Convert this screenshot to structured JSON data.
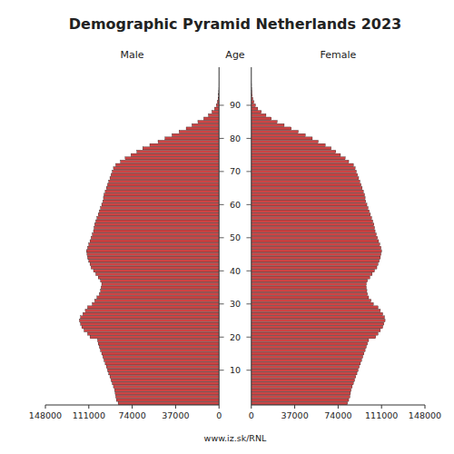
{
  "chart_data": {
    "type": "bar",
    "orientation": "horizontal",
    "title": "Demographic Pyramid Netherlands 2023",
    "ylabel": "Age",
    "annotations": [
      "www.iz.sk/RNL"
    ],
    "categories": [
      null,
      null,
      null,
      null,
      null,
      null,
      null,
      null,
      null,
      null,
      "10",
      null,
      null,
      null,
      null,
      null,
      null,
      null,
      null,
      null,
      "20",
      null,
      null,
      null,
      null,
      null,
      null,
      null,
      null,
      null,
      "30",
      null,
      null,
      null,
      null,
      null,
      null,
      null,
      null,
      null,
      "40",
      null,
      null,
      null,
      null,
      null,
      null,
      null,
      null,
      null,
      "50",
      null,
      null,
      null,
      null,
      null,
      null,
      null,
      null,
      null,
      "60",
      null,
      null,
      null,
      null,
      null,
      null,
      null,
      null,
      null,
      "70",
      null,
      null,
      null,
      null,
      null,
      null,
      null,
      null,
      null,
      "80",
      null,
      null,
      null,
      null,
      null,
      null,
      null,
      null,
      null,
      "90",
      null,
      null,
      null,
      null,
      null,
      null,
      null,
      null,
      null,
      null,
      null
    ],
    "xlim": [
      0,
      148000
    ],
    "xticks": [
      0,
      37000,
      74000,
      111000,
      148000
    ],
    "grid": false,
    "series": [
      {
        "name": "Male",
        "color": "#cd4444",
        "values": [
          86000,
          87500,
          88000,
          88500,
          89000,
          90000,
          91000,
          92000,
          93000,
          94000,
          95000,
          96000,
          97000,
          98000,
          99000,
          100000,
          101000,
          102000,
          103000,
          103500,
          110000,
          112000,
          115000,
          117000,
          118000,
          119000,
          118000,
          116000,
          114000,
          112000,
          108000,
          106000,
          104000,
          102000,
          101000,
          100500,
          100000,
          101000,
          103000,
          105000,
          107000,
          109000,
          110000,
          111000,
          112000,
          112500,
          113000,
          112000,
          111000,
          110000,
          109000,
          108000,
          107000,
          106500,
          106000,
          105000,
          104000,
          103000,
          102000,
          101000,
          100000,
          99000,
          98500,
          98000,
          97000,
          96000,
          95000,
          94000,
          93000,
          92000,
          91000,
          90000,
          88000,
          84000,
          80000,
          75000,
          70000,
          65000,
          59000,
          52000,
          46000,
          40000,
          34000,
          28000,
          23000,
          18000,
          13000,
          9000,
          6000,
          3800,
          2300,
          1400,
          800,
          450,
          240,
          130,
          65,
          30,
          15,
          7,
          3,
          1
        ]
      },
      {
        "name": "Female",
        "color": "#cd4444",
        "values": [
          82000,
          83000,
          84000,
          84500,
          85000,
          86000,
          87000,
          88000,
          89000,
          90000,
          91000,
          92000,
          93000,
          94000,
          95000,
          96000,
          97000,
          98000,
          99000,
          100000,
          106000,
          108000,
          110000,
          112000,
          113000,
          114000,
          113500,
          112000,
          110000,
          108000,
          104000,
          102000,
          100000,
          99000,
          98500,
          98000,
          98000,
          99000,
          101000,
          103000,
          105000,
          107000,
          108000,
          109000,
          110000,
          110500,
          111000,
          110500,
          109500,
          108500,
          107500,
          106500,
          105500,
          105000,
          104500,
          103500,
          102500,
          101500,
          100500,
          99500,
          98500,
          97500,
          97000,
          96500,
          95500,
          94500,
          93500,
          92500,
          91500,
          90500,
          89500,
          88500,
          87000,
          83000,
          80000,
          76000,
          72000,
          68000,
          63000,
          57000,
          52000,
          46000,
          40000,
          34000,
          28000,
          22000,
          17000,
          12500,
          8500,
          5500,
          3500,
          2200,
          1300,
          750,
          420,
          230,
          120,
          60,
          28,
          12,
          5,
          2
        ]
      }
    ]
  }
}
